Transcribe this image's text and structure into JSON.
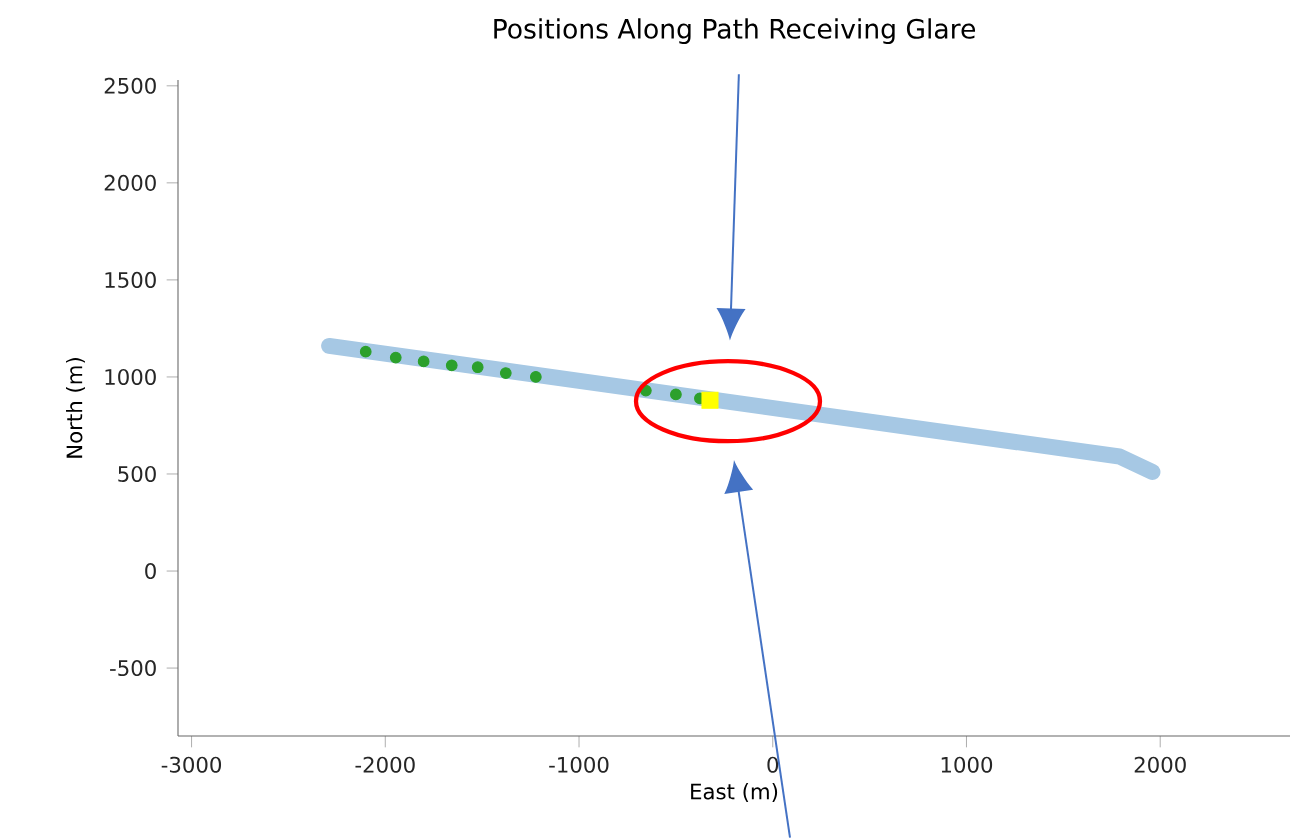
{
  "chart_data": {
    "type": "scatter",
    "title": "Positions Along Path Receiving Glare",
    "xlabel": "East (m)",
    "ylabel": "North (m)",
    "xlim": [
      -3070,
      2670
    ],
    "ylim": [
      -850,
      2530
    ],
    "xticks": [
      -3000,
      -2000,
      -1000,
      0,
      1000,
      2000
    ],
    "yticks": [
      -500,
      0,
      500,
      1000,
      1500,
      2000,
      2500
    ],
    "series": [
      {
        "type": "line",
        "color": "#a6c8e4",
        "x": [
          -2290,
          1790,
          1960
        ],
        "values": [
          1160,
          590,
          510
        ]
      },
      {
        "color": "#2ca02c",
        "marker": "circle",
        "x": [
          -2101,
          -1946,
          -1802,
          -1657,
          -1523,
          -1378,
          -1223,
          -655,
          -500,
          -376
        ],
        "values": [
          1130,
          1100,
          1080,
          1060,
          1050,
          1020,
          1000,
          930,
          910,
          890
        ]
      },
      {
        "color": "#ffff00",
        "marker": "square",
        "x": [
          -324
        ],
        "values": [
          880
        ]
      }
    ]
  }
}
